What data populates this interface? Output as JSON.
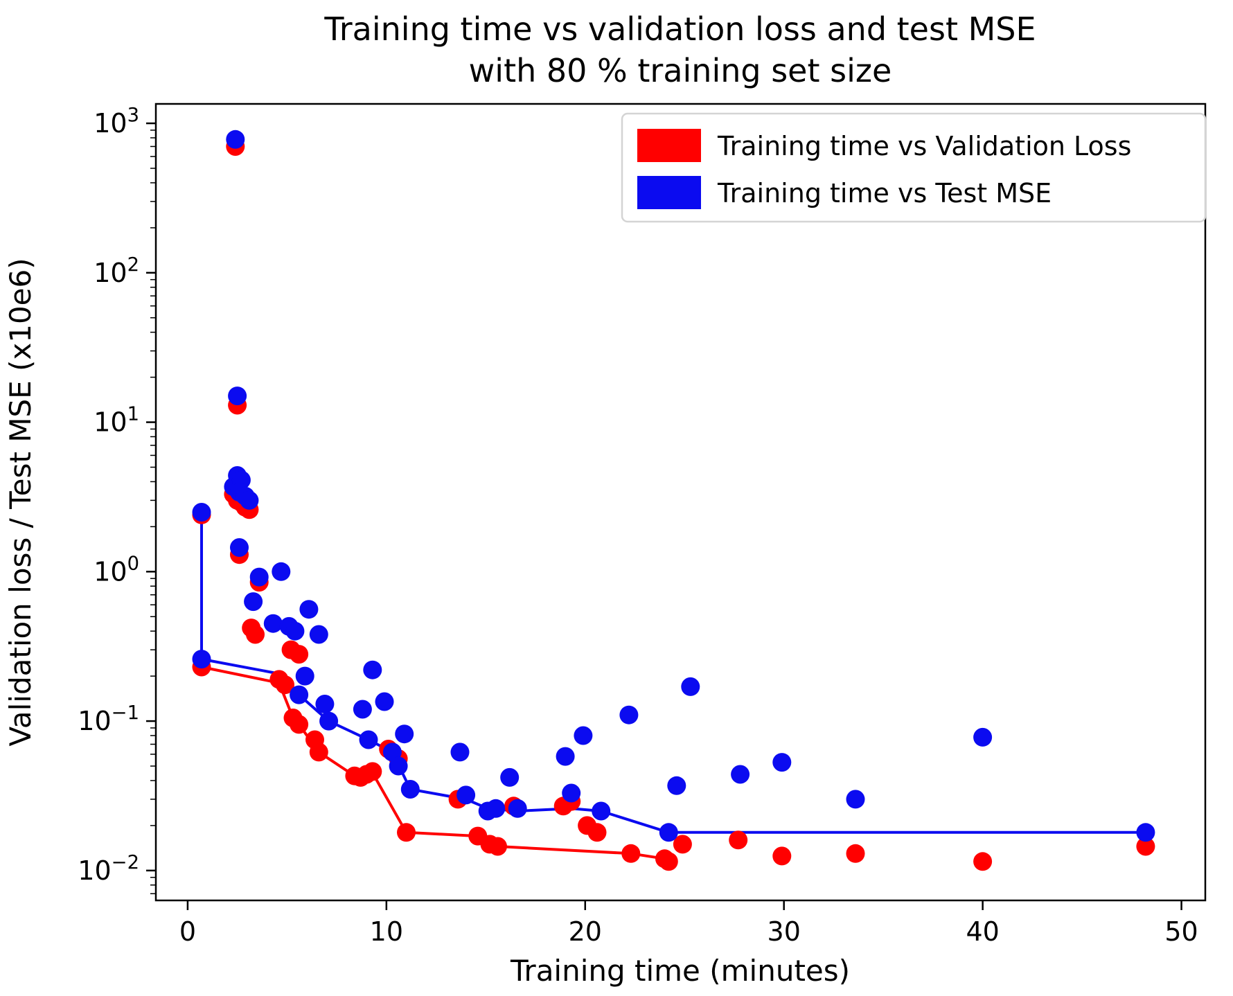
{
  "chart_data": {
    "type": "scatter",
    "title": "Training time vs validation loss and test MSE with 80 % training set size",
    "title_lines": [
      "Training time vs validation loss and test MSE",
      "with 80 % training set size"
    ],
    "xlabel": "Training time (minutes)",
    "ylabel": "Validation loss / Test MSE (x10e6)",
    "y_scale": "log",
    "grid": false,
    "xlim": [
      -1.6,
      51.2
    ],
    "ylim_log10": [
      -2.2,
      3.13
    ],
    "x_ticks": [
      0,
      10,
      20,
      30,
      40,
      50
    ],
    "y_ticks": [
      {
        "value": 1000,
        "base": "10",
        "exp": "3"
      },
      {
        "value": 100,
        "base": "10",
        "exp": "2"
      },
      {
        "value": 10,
        "base": "10",
        "exp": "1"
      },
      {
        "value": 1,
        "base": "10",
        "exp": "0"
      },
      {
        "value": 0.1,
        "base": "10",
        "exp": "−1"
      },
      {
        "value": 0.01,
        "base": "10",
        "exp": "−2"
      }
    ],
    "colors": {
      "validation_loss": "#ff0000",
      "test_mse": "#0b0bf0"
    },
    "legend": {
      "position": "upper right",
      "entries": [
        {
          "label": "Training time vs Validation Loss",
          "color": "#ff0000"
        },
        {
          "label": "Training time vs Test MSE",
          "color": "#0b0bf0"
        }
      ]
    },
    "series": [
      {
        "name": "validation-loss-trend-line",
        "type": "line",
        "color": "#ff0000",
        "points": [
          [
            0.7,
            2.4
          ],
          [
            0.7,
            0.23
          ],
          [
            4.6,
            0.18
          ],
          [
            5.3,
            0.105
          ],
          [
            5.6,
            0.095
          ],
          [
            6.6,
            0.062
          ],
          [
            8.4,
            0.043
          ],
          [
            9.3,
            0.045
          ],
          [
            11.0,
            0.018
          ],
          [
            14.6,
            0.017
          ],
          [
            15.6,
            0.0145
          ],
          [
            22.3,
            0.013
          ],
          [
            24.0,
            0.012
          ],
          [
            24.2,
            0.0115
          ]
        ]
      },
      {
        "name": "test-mse-trend-line",
        "type": "line",
        "color": "#0b0bf0",
        "points": [
          [
            0.7,
            2.5
          ],
          [
            0.7,
            0.26
          ],
          [
            4.4,
            0.21
          ],
          [
            5.6,
            0.15
          ],
          [
            7.1,
            0.1
          ],
          [
            9.1,
            0.075
          ],
          [
            10.3,
            0.062
          ],
          [
            11.2,
            0.035
          ],
          [
            14.0,
            0.03
          ],
          [
            15.1,
            0.026
          ],
          [
            16.6,
            0.025
          ],
          [
            19.3,
            0.026
          ],
          [
            20.8,
            0.025
          ],
          [
            24.2,
            0.018
          ],
          [
            48.2,
            0.018
          ]
        ]
      },
      {
        "name": "Training time vs Validation Loss",
        "type": "scatter",
        "color": "#ff0000",
        "points": [
          [
            0.7,
            2.4
          ],
          [
            0.7,
            0.23
          ],
          [
            2.4,
            700
          ],
          [
            2.5,
            13
          ],
          [
            2.3,
            3.3
          ],
          [
            2.5,
            3.0
          ],
          [
            2.7,
            2.9
          ],
          [
            2.9,
            2.7
          ],
          [
            3.1,
            2.6
          ],
          [
            2.6,
            1.3
          ],
          [
            3.2,
            0.42
          ],
          [
            3.4,
            0.38
          ],
          [
            3.6,
            0.85
          ],
          [
            4.6,
            0.19
          ],
          [
            4.9,
            0.175
          ],
          [
            5.2,
            0.3
          ],
          [
            5.6,
            0.28
          ],
          [
            5.3,
            0.105
          ],
          [
            5.6,
            0.095
          ],
          [
            6.4,
            0.075
          ],
          [
            6.6,
            0.062
          ],
          [
            8.4,
            0.043
          ],
          [
            8.7,
            0.042
          ],
          [
            9.0,
            0.044
          ],
          [
            9.3,
            0.046
          ],
          [
            10.1,
            0.065
          ],
          [
            10.6,
            0.056
          ],
          [
            11.0,
            0.018
          ],
          [
            13.6,
            0.03
          ],
          [
            14.6,
            0.017
          ],
          [
            15.2,
            0.015
          ],
          [
            15.6,
            0.0145
          ],
          [
            16.4,
            0.027
          ],
          [
            18.9,
            0.027
          ],
          [
            19.3,
            0.029
          ],
          [
            20.1,
            0.02
          ],
          [
            20.6,
            0.018
          ],
          [
            22.3,
            0.013
          ],
          [
            24.0,
            0.012
          ],
          [
            24.2,
            0.0115
          ],
          [
            24.9,
            0.015
          ],
          [
            27.7,
            0.016
          ],
          [
            29.9,
            0.0125
          ],
          [
            33.6,
            0.013
          ],
          [
            40.0,
            0.0115
          ],
          [
            48.2,
            0.0145
          ]
        ]
      },
      {
        "name": "Training time vs Test MSE",
        "type": "scatter",
        "color": "#0b0bf0",
        "points": [
          [
            0.7,
            2.5
          ],
          [
            0.7,
            0.26
          ],
          [
            2.4,
            780
          ],
          [
            2.5,
            15
          ],
          [
            2.3,
            3.7
          ],
          [
            2.5,
            4.4
          ],
          [
            2.7,
            4.1
          ],
          [
            2.6,
            3.4
          ],
          [
            2.9,
            3.2
          ],
          [
            3.1,
            3.0
          ],
          [
            2.6,
            1.45
          ],
          [
            3.3,
            0.63
          ],
          [
            3.6,
            0.92
          ],
          [
            4.7,
            1.0
          ],
          [
            4.3,
            0.45
          ],
          [
            5.1,
            0.43
          ],
          [
            5.4,
            0.4
          ],
          [
            5.6,
            0.15
          ],
          [
            5.9,
            0.2
          ],
          [
            6.1,
            0.56
          ],
          [
            6.6,
            0.38
          ],
          [
            6.9,
            0.13
          ],
          [
            7.1,
            0.1
          ],
          [
            8.8,
            0.12
          ],
          [
            9.3,
            0.22
          ],
          [
            9.1,
            0.075
          ],
          [
            9.9,
            0.135
          ],
          [
            10.3,
            0.062
          ],
          [
            10.6,
            0.05
          ],
          [
            10.9,
            0.082
          ],
          [
            11.2,
            0.035
          ],
          [
            13.7,
            0.062
          ],
          [
            14.0,
            0.032
          ],
          [
            15.1,
            0.025
          ],
          [
            15.5,
            0.026
          ],
          [
            16.2,
            0.042
          ],
          [
            16.6,
            0.026
          ],
          [
            19.0,
            0.058
          ],
          [
            19.3,
            0.033
          ],
          [
            19.9,
            0.08
          ],
          [
            20.8,
            0.025
          ],
          [
            22.2,
            0.11
          ],
          [
            24.2,
            0.018
          ],
          [
            24.6,
            0.037
          ],
          [
            25.3,
            0.17
          ],
          [
            27.8,
            0.044
          ],
          [
            29.9,
            0.053
          ],
          [
            33.6,
            0.03
          ],
          [
            40.0,
            0.078
          ],
          [
            48.2,
            0.018
          ]
        ]
      }
    ]
  }
}
